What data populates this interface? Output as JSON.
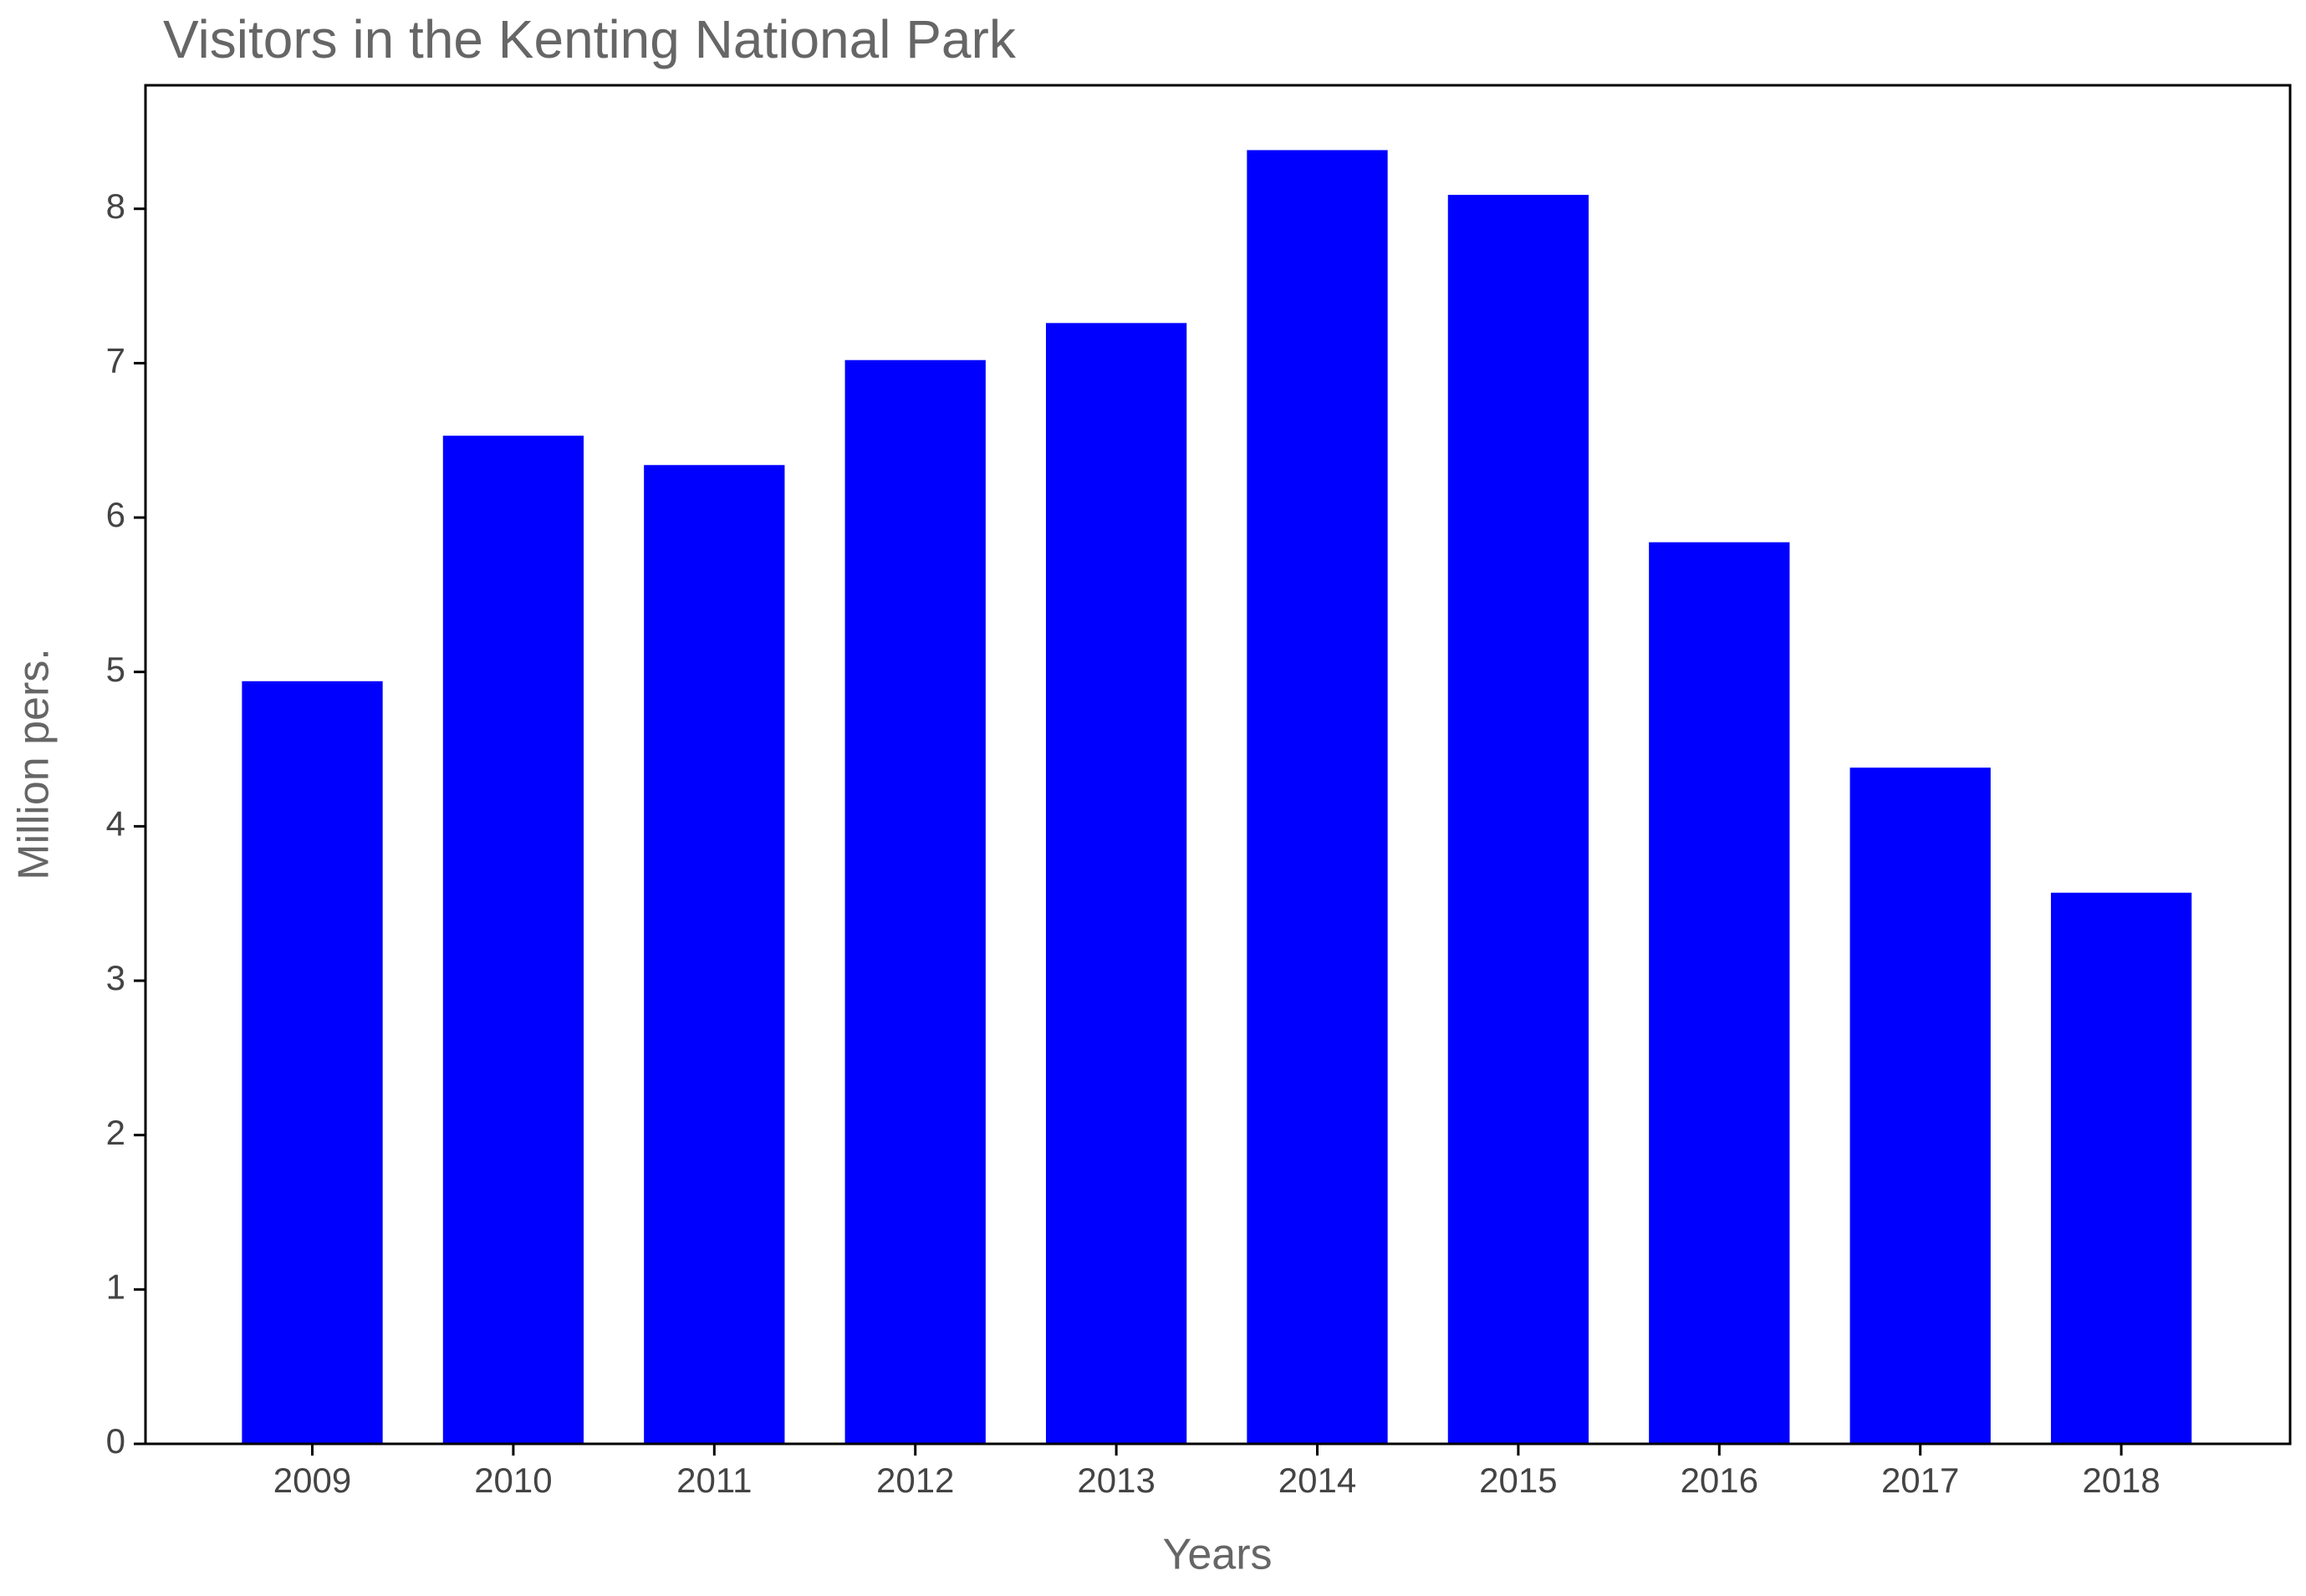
{
  "chart_data": {
    "type": "bar",
    "title": "Visitors in the Kenting National Park",
    "x_label": "Years",
    "y_label": "Million pers.",
    "categories": [
      "2009",
      "2010",
      "2011",
      "2012",
      "2013",
      "2014",
      "2015",
      "2016",
      "2017",
      "2018"
    ],
    "values": [
      4.94,
      6.53,
      6.34,
      7.02,
      7.26,
      8.38,
      8.09,
      5.84,
      4.38,
      3.57
    ],
    "color": "#0000ff",
    "ylim": [
      0,
      8.8
    ],
    "yticks": [
      0,
      1,
      2,
      3,
      4,
      5,
      6,
      7,
      8
    ],
    "grid": false
  }
}
